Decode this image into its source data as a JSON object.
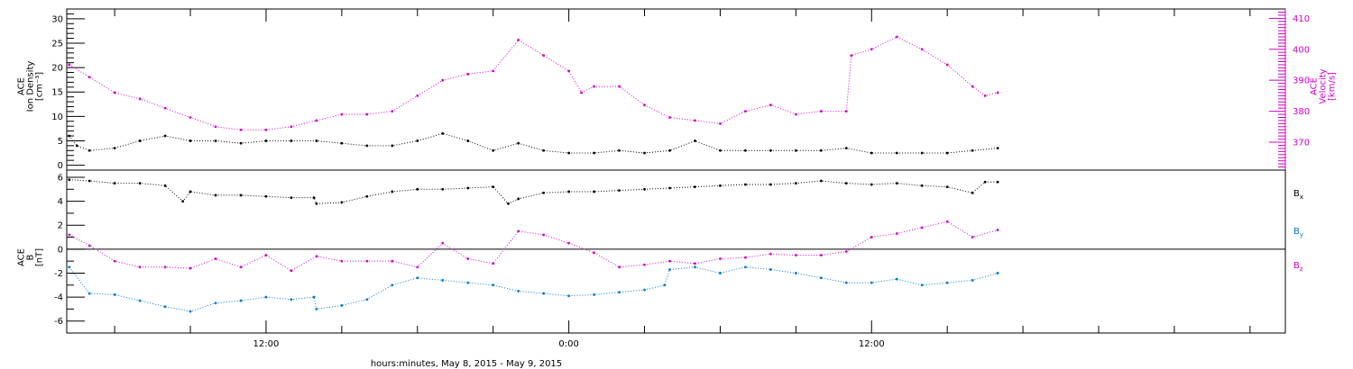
{
  "footer": {
    "xlabel": "hours:minutes, May  8, 2015 - May  9, 2015"
  },
  "colors": {
    "axis": "#000000",
    "black": "#000000",
    "magenta": "#cc00cc",
    "blue": "#0077cc"
  },
  "chart_data": [
    {
      "type": "scatter",
      "panel": "top",
      "ylabel_lines": [
        "ACE",
        "Ion Density",
        "[cm⁻³]"
      ],
      "ylabel_right_lines": [
        "ACE",
        "Velocity",
        "[km/s]"
      ],
      "xlim_hours": [
        4.1,
        52.4
      ],
      "ylim": [
        -1,
        32
      ],
      "ylim_right": [
        361,
        413
      ],
      "ytick_labels": [
        "0",
        "5",
        "10",
        "15",
        "20",
        "25",
        "30"
      ],
      "ytick_values": [
        0,
        5,
        10,
        15,
        20,
        25,
        30
      ],
      "yright_tick_labels": [
        "370",
        "380",
        "390",
        "400",
        "410"
      ],
      "yright_tick_values": [
        370,
        380,
        390,
        400,
        410
      ],
      "grid": false,
      "series": [
        {
          "color": "black",
          "axis": "left",
          "x_hours": [
            4.2,
            4.5,
            5,
            6,
            7,
            8,
            9,
            10,
            11,
            12,
            13,
            14,
            15,
            16,
            17,
            18,
            19,
            20,
            21,
            22,
            23,
            24,
            25,
            26,
            27,
            28,
            29,
            30,
            31,
            32,
            33,
            34,
            35,
            36,
            37,
            38,
            39,
            40,
            41
          ],
          "values": [
            6,
            4,
            3,
            3.5,
            5,
            6,
            5,
            5,
            4.5,
            5,
            5,
            5,
            4.5,
            4,
            4,
            5,
            6.5,
            5,
            3,
            4.5,
            3,
            2.5,
            2.5,
            3,
            2.5,
            3,
            5,
            3,
            3,
            3,
            3,
            3,
            3.5,
            2.5,
            2.5,
            2.5,
            2.5,
            3,
            3.5
          ]
        },
        {
          "color": "magenta",
          "axis": "right",
          "x_hours": [
            4.2,
            5,
            6,
            7,
            8,
            9,
            10,
            11,
            12,
            13,
            14,
            15,
            16,
            17,
            18,
            19,
            20,
            21,
            22,
            23,
            24,
            24.5,
            25,
            26,
            27,
            28,
            29,
            30,
            31,
            32,
            33,
            34,
            35,
            35.2,
            36,
            37,
            38,
            39,
            40,
            40.5,
            41
          ],
          "values": [
            395,
            391,
            386,
            384,
            381,
            378,
            375,
            374,
            374,
            375,
            377,
            379,
            379,
            380,
            385,
            390,
            392,
            393,
            403,
            398,
            393,
            386,
            388,
            388,
            382,
            378,
            377,
            376,
            380,
            382,
            379,
            380,
            380,
            398,
            400,
            404,
            400,
            395,
            388,
            385,
            386
          ]
        }
      ]
    },
    {
      "type": "scatter",
      "panel": "bottom",
      "ylabel_lines": [
        "ACE",
        "B",
        "[nT]"
      ],
      "xlim_hours": [
        4.1,
        52.4
      ],
      "ylim": [
        -7,
        6.6
      ],
      "ytick_labels": [
        "-6",
        "-4",
        "-2",
        "0",
        "2",
        "4",
        "6"
      ],
      "ytick_values": [
        -6,
        -4,
        -2,
        0,
        2,
        4,
        6
      ],
      "xtick_labels": [
        "12:00",
        "0:00",
        "12:00"
      ],
      "xtick_hours": [
        12,
        24,
        36
      ],
      "zero_line": true,
      "grid": false,
      "series": [
        {
          "name": "B",
          "subscript": "x",
          "color": "black",
          "x_hours": [
            4.2,
            5,
            6,
            7,
            8,
            8.7,
            9,
            10,
            11,
            12,
            13,
            13.9,
            14,
            15,
            16,
            17,
            18,
            19,
            20,
            21,
            21.6,
            22,
            23,
            24,
            25,
            26,
            27,
            28,
            29,
            30,
            31,
            32,
            33,
            34,
            35,
            36,
            37,
            38,
            39,
            40,
            40.5,
            41
          ],
          "values": [
            5.8,
            5.7,
            5.5,
            5.5,
            5.3,
            4.0,
            4.8,
            4.5,
            4.5,
            4.4,
            4.3,
            4.3,
            3.8,
            3.9,
            4.4,
            4.8,
            5.0,
            5.0,
            5.1,
            5.2,
            3.8,
            4.2,
            4.7,
            4.8,
            4.8,
            4.9,
            5.0,
            5.1,
            5.2,
            5.3,
            5.4,
            5.4,
            5.5,
            5.7,
            5.5,
            5.4,
            5.5,
            5.3,
            5.2,
            4.7,
            5.6,
            5.6
          ]
        },
        {
          "name": "B",
          "subscript": "y",
          "color": "blue",
          "x_hours": [
            4.2,
            5,
            6,
            7,
            8,
            9,
            10,
            11,
            12,
            13,
            13.9,
            14,
            15,
            16,
            17,
            18,
            19,
            20,
            21,
            22,
            23,
            24,
            25,
            26,
            27,
            27.8,
            28,
            29,
            30,
            31,
            32,
            33,
            34,
            35,
            36,
            37,
            38,
            39,
            40,
            41
          ],
          "values": [
            -1.5,
            -3.7,
            -3.8,
            -4.3,
            -4.8,
            -5.2,
            -4.5,
            -4.3,
            -4.0,
            -4.2,
            -4.0,
            -5.0,
            -4.7,
            -4.2,
            -3.0,
            -2.4,
            -2.6,
            -2.8,
            -3.0,
            -3.5,
            -3.7,
            -3.9,
            -3.8,
            -3.6,
            -3.4,
            -3.0,
            -1.7,
            -1.5,
            -2.0,
            -1.5,
            -1.7,
            -2.0,
            -2.4,
            -2.8,
            -2.8,
            -2.5,
            -3.0,
            -2.8,
            -2.6,
            -2.0
          ]
        },
        {
          "name": "B",
          "subscript": "z",
          "color": "magenta",
          "x_hours": [
            4.2,
            5,
            6,
            7,
            8,
            9,
            10,
            11,
            12,
            13,
            14,
            15,
            16,
            17,
            18,
            19,
            20,
            21,
            22,
            23,
            24,
            25,
            26,
            27,
            28,
            29,
            30,
            31,
            32,
            33,
            34,
            35,
            36,
            37,
            38,
            39,
            40,
            41
          ],
          "values": [
            1.2,
            0.3,
            -1.0,
            -1.5,
            -1.5,
            -1.6,
            -0.8,
            -1.5,
            -0.5,
            -1.8,
            -0.6,
            -1.0,
            -1.0,
            -1.0,
            -1.5,
            0.5,
            -0.8,
            -1.2,
            1.5,
            1.2,
            0.5,
            -0.3,
            -1.5,
            -1.3,
            -1.0,
            -1.2,
            -0.8,
            -0.7,
            -0.4,
            -0.5,
            -0.5,
            -0.2,
            1.0,
            1.3,
            1.8,
            2.3,
            1.0,
            1.6
          ]
        }
      ]
    }
  ]
}
